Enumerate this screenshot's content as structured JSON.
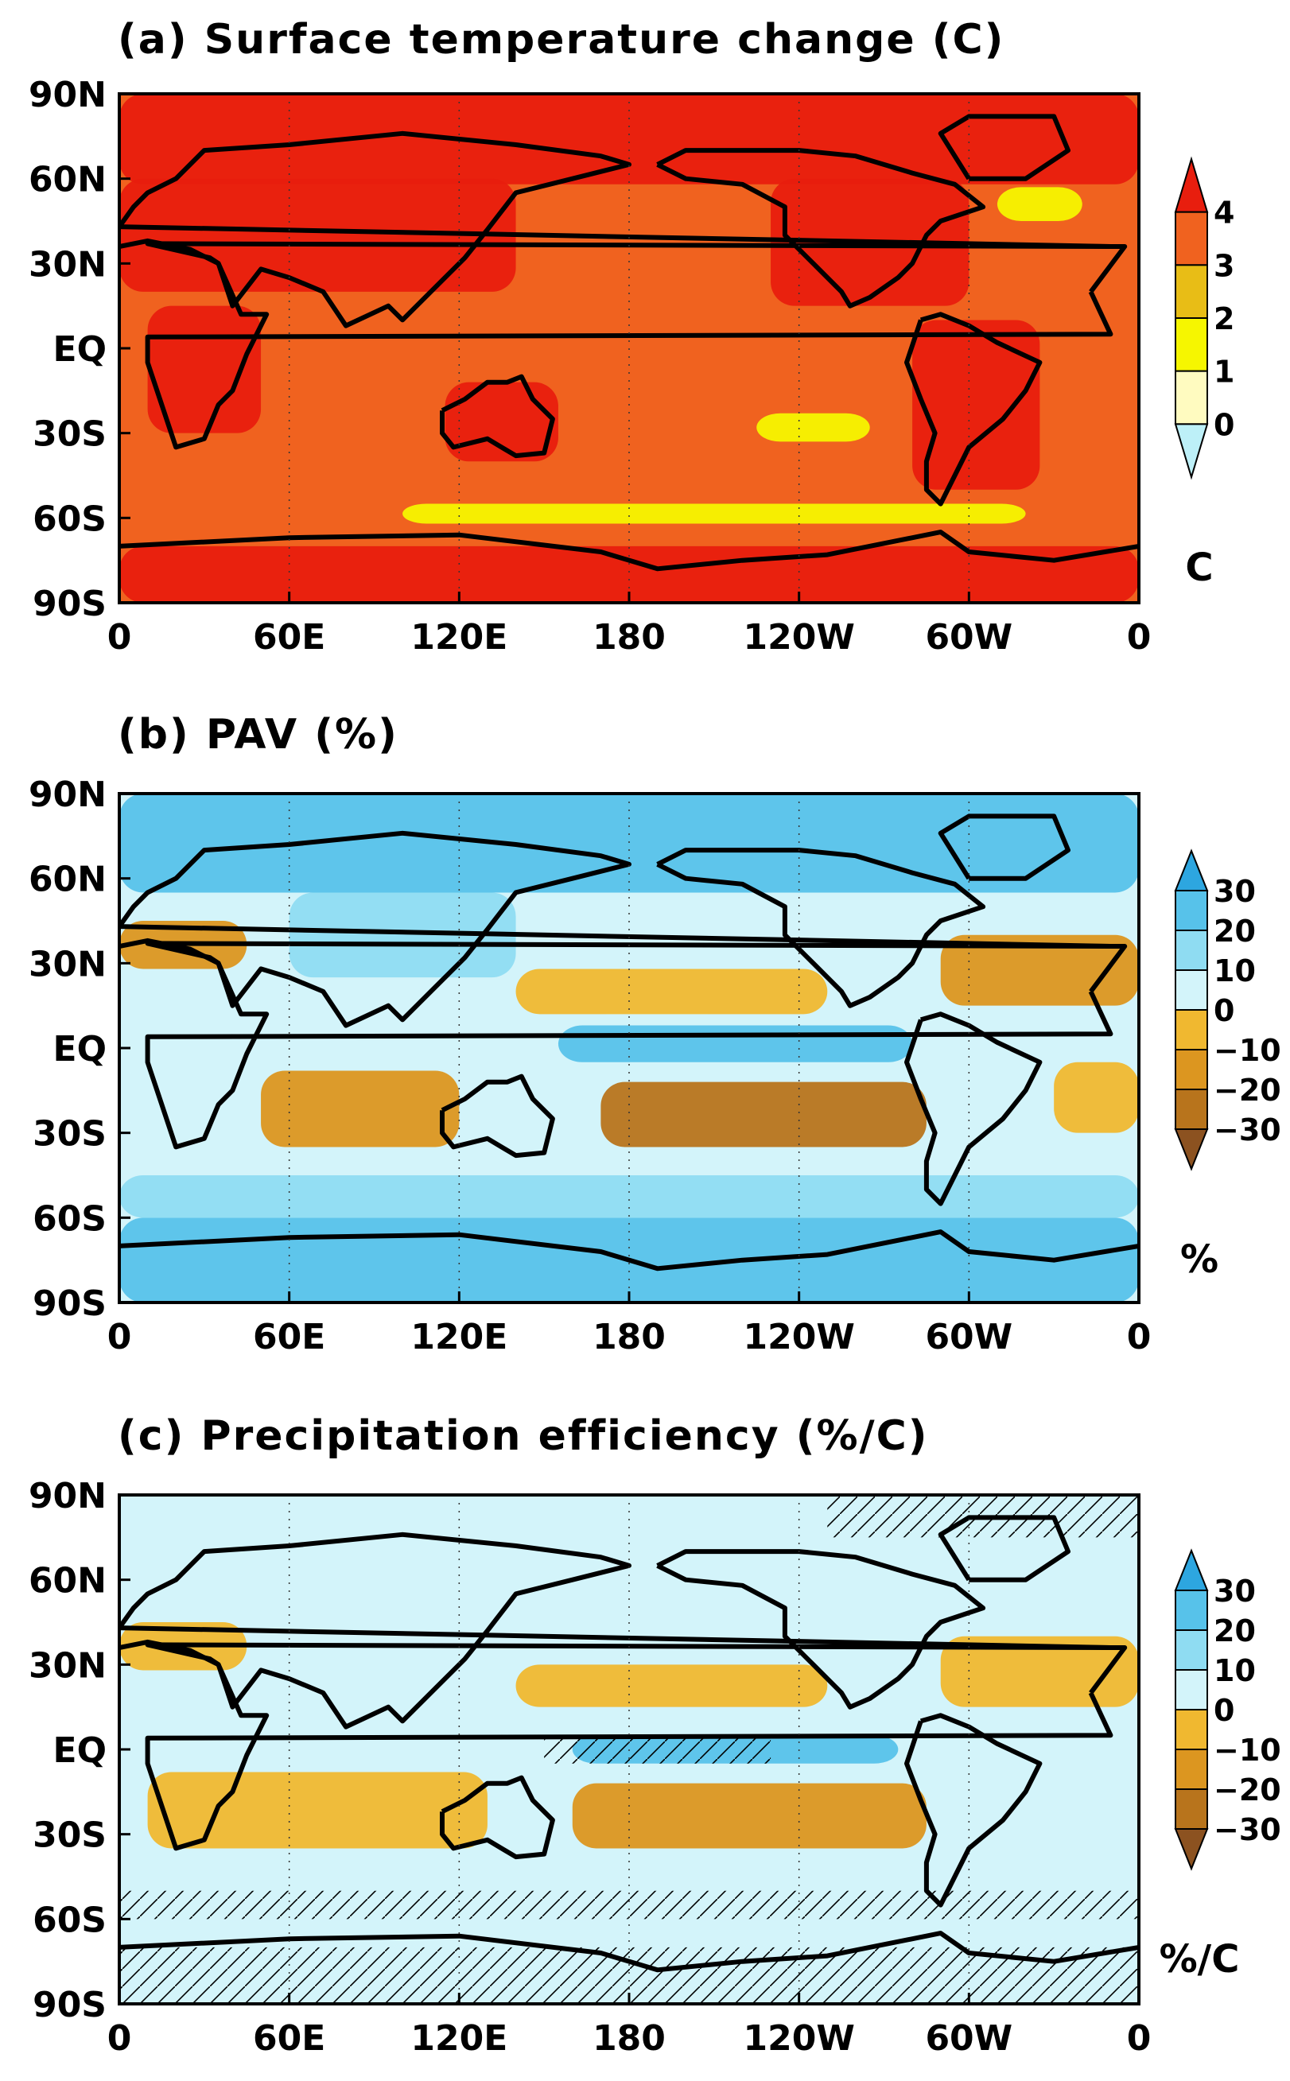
{
  "chart_data": [
    {
      "type": "heatmap",
      "title": "(a) Surface temperature change (C)",
      "xlabel": "",
      "ylabel": "",
      "x_ticks": [
        "0",
        "60E",
        "120E",
        "180",
        "120W",
        "60W",
        "0"
      ],
      "y_ticks": [
        "90N",
        "60N",
        "30N",
        "EQ",
        "30S",
        "60S",
        "90S"
      ],
      "xlim": [
        0,
        360
      ],
      "ylim": [
        -90,
        90
      ],
      "colorbar": {
        "levels": [
          0,
          1,
          2,
          3,
          4
        ],
        "labels": [
          "4",
          "3",
          "2",
          "1",
          "0"
        ],
        "unit": "C",
        "colors": [
          "#e81e0e",
          "#f0621f",
          "#e8bd16",
          "#f6f600",
          "#fffbc0",
          "#bdf0f8"
        ]
      },
      "background": "#f0621f",
      "regions": [
        {
          "name": "arctic",
          "lon": [
            0,
            360
          ],
          "lat": [
            58,
            90
          ],
          "value": 4,
          "color": "#e81e0e"
        },
        {
          "name": "antarctic",
          "lon": [
            0,
            360
          ],
          "lat": [
            -90,
            -70
          ],
          "value": 4,
          "color": "#e81e0e"
        },
        {
          "name": "eurasia",
          "lon": [
            0,
            140
          ],
          "lat": [
            20,
            60
          ],
          "value": 4,
          "color": "#e81e0e"
        },
        {
          "name": "north-america",
          "lon": [
            230,
            300
          ],
          "lat": [
            15,
            60
          ],
          "value": 4,
          "color": "#e81e0e"
        },
        {
          "name": "africa",
          "lon": [
            10,
            50
          ],
          "lat": [
            -30,
            15
          ],
          "value": 4,
          "color": "#e81e0e"
        },
        {
          "name": "south-america",
          "lon": [
            280,
            325
          ],
          "lat": [
            -50,
            10
          ],
          "value": 4,
          "color": "#e81e0e"
        },
        {
          "name": "australia",
          "lon": [
            115,
            155
          ],
          "lat": [
            -40,
            -12
          ],
          "value": 4,
          "color": "#e81e0e"
        },
        {
          "name": "southern-ocean-minimum",
          "lon": [
            100,
            320
          ],
          "lat": [
            -62,
            -55
          ],
          "value": 1.5,
          "color": "#f6f600"
        },
        {
          "name": "south-pacific-minimum",
          "lon": [
            225,
            265
          ],
          "lat": [
            -33,
            -23
          ],
          "value": 1.5,
          "color": "#f6f600"
        },
        {
          "name": "north-atlantic-minimum",
          "lon": [
            310,
            340
          ],
          "lat": [
            45,
            57
          ],
          "value": 1.5,
          "color": "#f6f600"
        }
      ]
    },
    {
      "type": "heatmap",
      "title": "(b) PAV (%)",
      "xlabel": "",
      "ylabel": "",
      "x_ticks": [
        "0",
        "60E",
        "120E",
        "180",
        "120W",
        "60W",
        "0"
      ],
      "y_ticks": [
        "90N",
        "60N",
        "30N",
        "EQ",
        "30S",
        "60S",
        "90S"
      ],
      "xlim": [
        0,
        360
      ],
      "ylim": [
        -90,
        90
      ],
      "colorbar": {
        "levels": [
          -30,
          -20,
          -10,
          0,
          10,
          20,
          30
        ],
        "labels": [
          "30",
          "20",
          "10",
          "0",
          "−10",
          "−20",
          "−30"
        ],
        "unit": "%",
        "colors": [
          "#2da6e0",
          "#57c2ea",
          "#8fdcf2",
          "#d3f4fa",
          "#f0b830",
          "#dc9620",
          "#b8741c",
          "#8c5220"
        ]
      },
      "background": "#d3f4fa",
      "regions": [
        {
          "name": "northern-high-latitudes",
          "lon": [
            0,
            360
          ],
          "lat": [
            55,
            90
          ],
          "value": 20,
          "color": "#57c2ea"
        },
        {
          "name": "antarctic",
          "lon": [
            0,
            360
          ],
          "lat": [
            -90,
            -60
          ],
          "value": 20,
          "color": "#57c2ea"
        },
        {
          "name": "southern-midlatitudes",
          "lon": [
            0,
            360
          ],
          "lat": [
            -60,
            -45
          ],
          "value": 10,
          "color": "#8fdcf2"
        },
        {
          "name": "equatorial-pacific",
          "lon": [
            155,
            280
          ],
          "lat": [
            -5,
            8
          ],
          "value": 15,
          "color": "#57c2ea"
        },
        {
          "name": "asia",
          "lon": [
            60,
            140
          ],
          "lat": [
            25,
            55
          ],
          "value": 10,
          "color": "#8fdcf2"
        },
        {
          "name": "mediterranean",
          "lon": [
            0,
            45
          ],
          "lat": [
            28,
            45
          ],
          "value": -15,
          "color": "#dc9620"
        },
        {
          "name": "north-atlantic-subtropics",
          "lon": [
            290,
            360
          ],
          "lat": [
            15,
            40
          ],
          "value": -15,
          "color": "#dc9620"
        },
        {
          "name": "south-indian-ocean",
          "lon": [
            50,
            120
          ],
          "lat": [
            -35,
            -8
          ],
          "value": -15,
          "color": "#dc9620"
        },
        {
          "name": "south-pacific-subtropics",
          "lon": [
            170,
            285
          ],
          "lat": [
            -35,
            -12
          ],
          "value": -25,
          "color": "#b8741c"
        },
        {
          "name": "south-atlantic",
          "lon": [
            330,
            360
          ],
          "lat": [
            -30,
            -5
          ],
          "value": -10,
          "color": "#f0b830"
        },
        {
          "name": "north-pacific-subtropics",
          "lon": [
            140,
            250
          ],
          "lat": [
            12,
            28
          ],
          "value": -10,
          "color": "#f0b830"
        }
      ]
    },
    {
      "type": "heatmap",
      "title": "(c) Precipitation efficiency (%/C)",
      "xlabel": "",
      "ylabel": "",
      "x_ticks": [
        "0",
        "60E",
        "120E",
        "180",
        "120W",
        "60W",
        "0"
      ],
      "y_ticks": [
        "90N",
        "60N",
        "30N",
        "EQ",
        "30S",
        "60S",
        "90S"
      ],
      "xlim": [
        0,
        360
      ],
      "ylim": [
        -90,
        90
      ],
      "colorbar": {
        "levels": [
          -30,
          -20,
          -10,
          0,
          10,
          20,
          30
        ],
        "labels": [
          "30",
          "20",
          "10",
          "0",
          "−10",
          "−20",
          "−30"
        ],
        "unit": "%/C",
        "colors": [
          "#2da6e0",
          "#57c2ea",
          "#8fdcf2",
          "#d3f4fa",
          "#f0b830",
          "#dc9620",
          "#b8741c",
          "#8c5220"
        ]
      },
      "background": "#d3f4fa",
      "regions": [
        {
          "name": "mediterranean",
          "lon": [
            0,
            45
          ],
          "lat": [
            28,
            45
          ],
          "value": -10,
          "color": "#f0b830"
        },
        {
          "name": "north-atlantic-subtropics",
          "lon": [
            290,
            360
          ],
          "lat": [
            15,
            40
          ],
          "value": -10,
          "color": "#f0b830"
        },
        {
          "name": "south-indian-ocean",
          "lon": [
            10,
            130
          ],
          "lat": [
            -35,
            -8
          ],
          "value": -10,
          "color": "#f0b830"
        },
        {
          "name": "south-pacific-subtropics",
          "lon": [
            160,
            285
          ],
          "lat": [
            -35,
            -12
          ],
          "value": -15,
          "color": "#dc9620"
        },
        {
          "name": "equatorial-pacific",
          "lon": [
            160,
            275
          ],
          "lat": [
            -5,
            5
          ],
          "value": 15,
          "color": "#57c2ea"
        },
        {
          "name": "north-pacific-subtropics",
          "lon": [
            140,
            250
          ],
          "lat": [
            15,
            30
          ],
          "value": -10,
          "color": "#f0b830"
        }
      ],
      "hatching": [
        {
          "name": "antarctic-significance",
          "lon": [
            0,
            360
          ],
          "lat": [
            -90,
            -70
          ]
        },
        {
          "name": "southern-ocean-significance",
          "lon": [
            0,
            360
          ],
          "lat": [
            -60,
            -50
          ]
        },
        {
          "name": "equatorial-pacific-significance",
          "lon": [
            150,
            230
          ],
          "lat": [
            -5,
            5
          ]
        },
        {
          "name": "arctic-significance",
          "lon": [
            250,
            360
          ],
          "lat": [
            75,
            90
          ]
        }
      ]
    }
  ]
}
